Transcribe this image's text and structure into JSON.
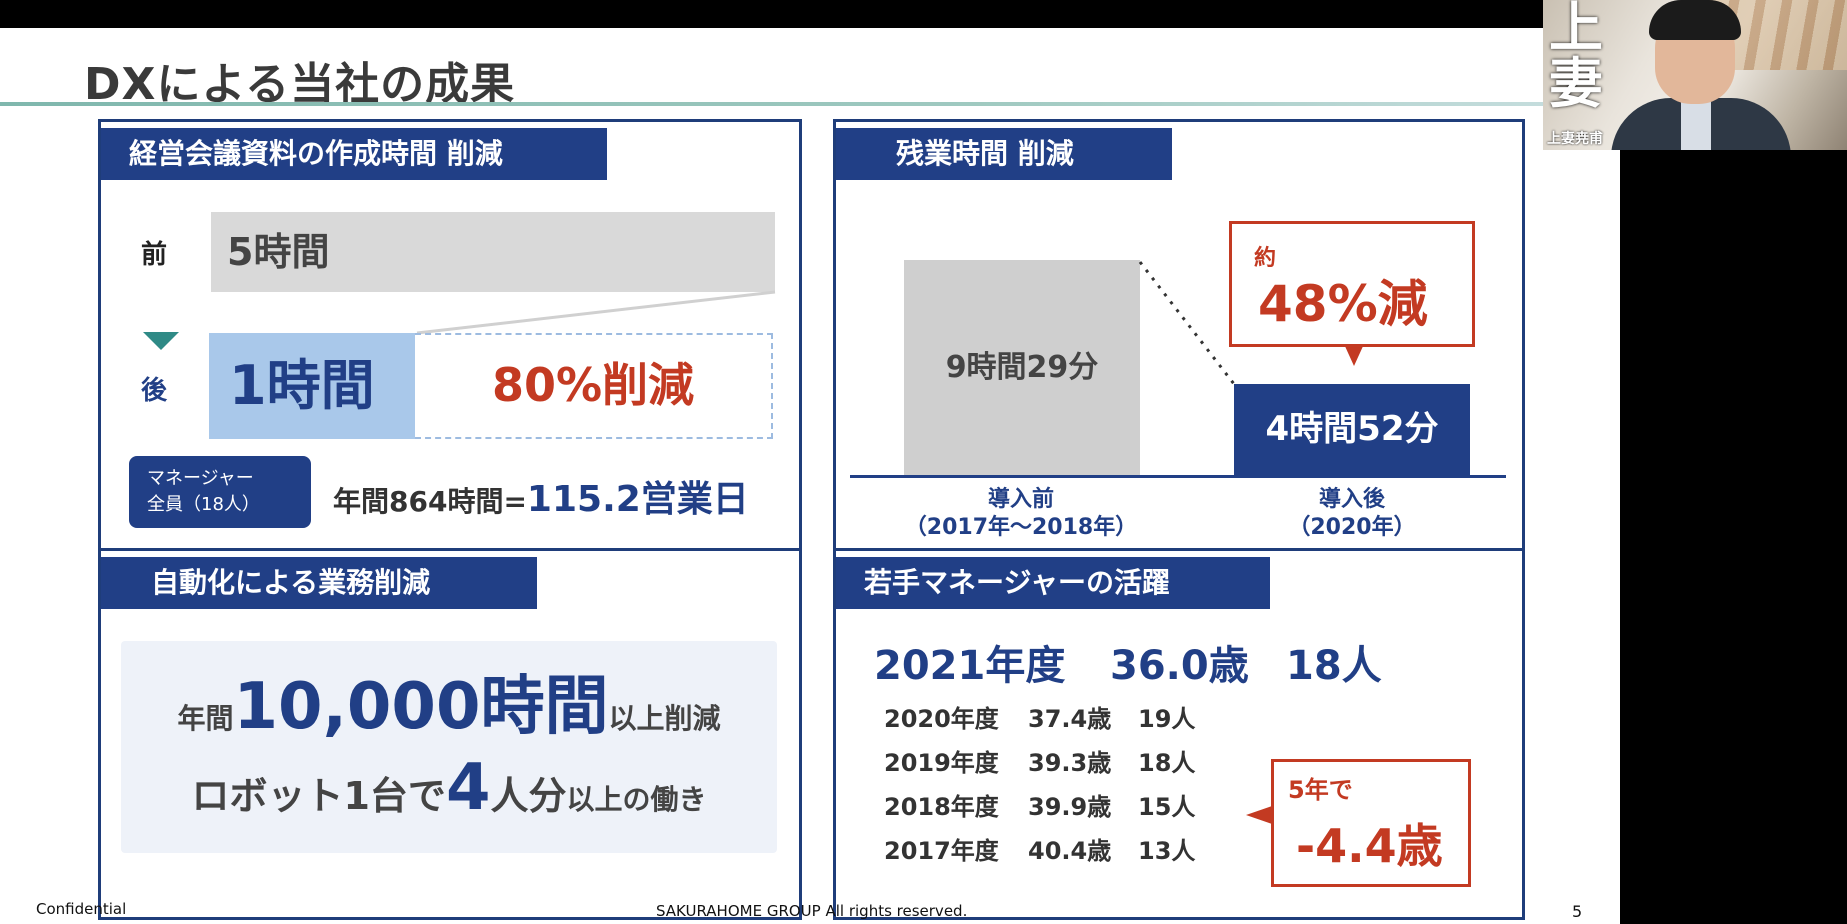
{
  "slide": {
    "title": "DXによる当社の成果",
    "footer_left": "Confidential",
    "footer_center": "SAKURAHOME GROUP All rights reserved.",
    "page_number": "5"
  },
  "panel1": {
    "header": "経営会議資料の作成時間 削減",
    "before_label": "前",
    "before_value": "5時間",
    "after_label": "後",
    "after_value": "1時間",
    "reduction": "80%削減",
    "manager_line1": "マネージャー",
    "manager_line2": "全員（18人）",
    "annual_prefix": "年間864時間=",
    "annual_big": "115.2営業日"
  },
  "panel2": {
    "header": "残業時間 削減",
    "before_bar": "9時間29分",
    "after_bar": "4時間52分",
    "callout_small": "約",
    "callout_big": "48%減",
    "x_before_1": "導入前",
    "x_before_2": "（2017年〜2018年）",
    "x_after_1": "導入後",
    "x_after_2": "（2020年）"
  },
  "panel3": {
    "header": "自動化による業務削減",
    "line1_a": "年間",
    "line1_b": "10,000時間",
    "line1_c": "以上削減",
    "line2_a": "ロボット1台で",
    "line2_b": "4",
    "line2_c": "人分",
    "line2_d": "以上の働き"
  },
  "panel4": {
    "header": "若手マネージャーの活躍",
    "current": {
      "year": "2021年度",
      "age": "36.0歳",
      "count": "18人"
    },
    "rows": [
      {
        "year": "2020年度",
        "age": "37.4歳",
        "count": "19人"
      },
      {
        "year": "2019年度",
        "age": "39.3歳",
        "count": "18人"
      },
      {
        "year": "2018年度",
        "age": "39.9歳",
        "count": "15人"
      },
      {
        "year": "2017年度",
        "age": "40.4歳",
        "count": "13人"
      }
    ],
    "callout_small": "5年で",
    "callout_big": "-4.4歳"
  },
  "webcam": {
    "name_overlay": "上妻",
    "participant_name": "上妻尭甫"
  }
}
